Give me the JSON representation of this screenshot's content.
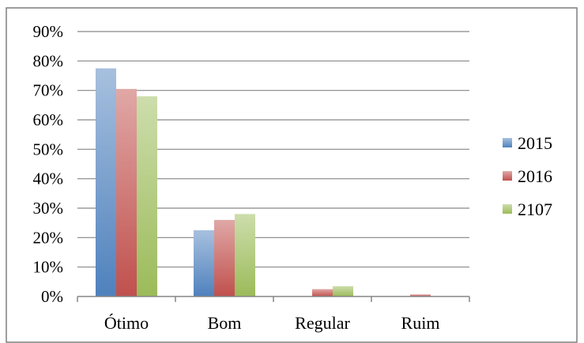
{
  "chart_data": {
    "type": "bar",
    "categories": [
      "Ótimo",
      "Bom",
      "Regular",
      "Ruim"
    ],
    "series": [
      {
        "name": "2015",
        "values": [
          0.775,
          0.225,
          0.0,
          0.0
        ],
        "color": "#4f81bd"
      },
      {
        "name": "2016",
        "values": [
          0.705,
          0.26,
          0.025,
          0.007
        ],
        "color": "#c0504d"
      },
      {
        "name": "2107",
        "values": [
          0.68,
          0.28,
          0.035,
          0.0
        ],
        "color": "#9bbb59"
      }
    ],
    "ylim": [
      0,
      0.9
    ],
    "yticks": [
      "0%",
      "10%",
      "20%",
      "30%",
      "40%",
      "50%",
      "60%",
      "70%",
      "80%",
      "90%"
    ],
    "grid": true,
    "legend_position": "right"
  }
}
